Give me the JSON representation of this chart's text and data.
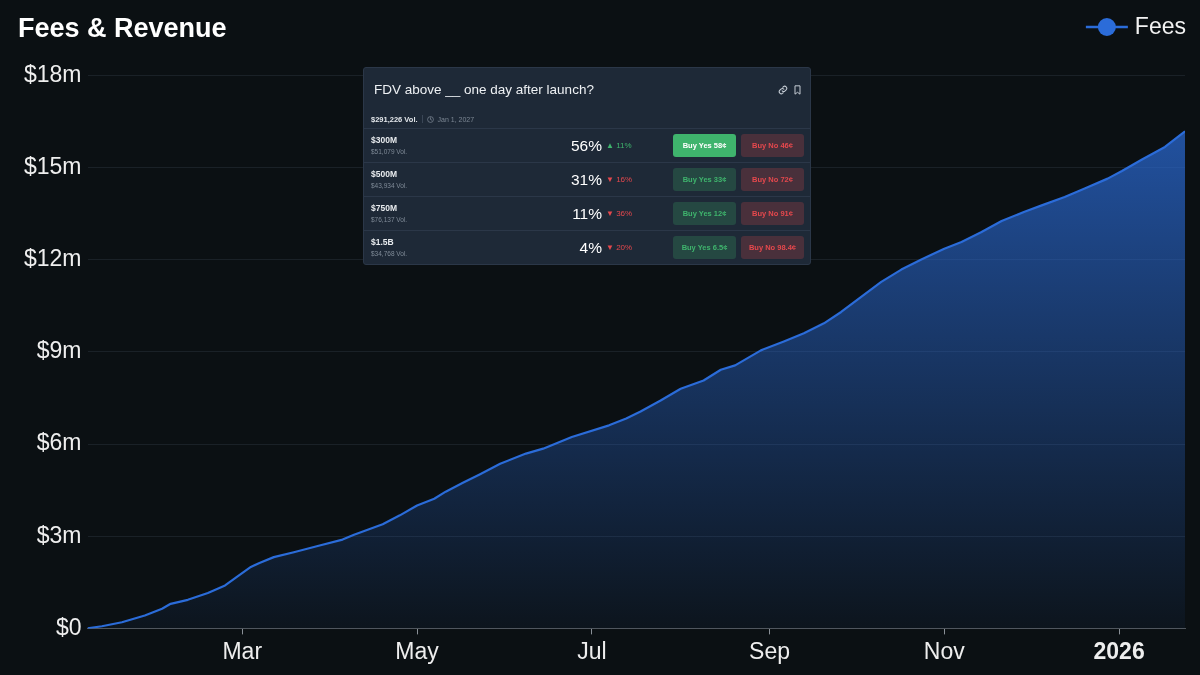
{
  "chart_data": [
    {
      "type": "area",
      "title": "Fees & Revenue",
      "x": [
        "2025-01-06",
        "2025-01-11",
        "2025-01-18",
        "2025-01-26",
        "2025-02-01",
        "2025-02-04",
        "2025-02-10",
        "2025-02-17",
        "2025-02-23",
        "2025-02-27",
        "2025-03-04",
        "2025-03-07",
        "2025-03-12",
        "2025-03-19",
        "2025-03-28",
        "2025-04-05",
        "2025-04-09",
        "2025-04-19",
        "2025-04-25",
        "2025-05-01",
        "2025-05-07",
        "2025-05-11",
        "2025-05-17",
        "2025-05-23",
        "2025-05-30",
        "2025-06-08",
        "2025-06-14",
        "2025-06-24",
        "2025-07-07",
        "2025-07-13",
        "2025-07-18",
        "2025-07-25",
        "2025-08-01",
        "2025-08-09",
        "2025-08-15",
        "2025-08-20",
        "2025-08-29",
        "2025-09-06",
        "2025-09-13",
        "2025-09-20",
        "2025-09-26",
        "2025-10-03",
        "2025-10-10",
        "2025-10-17",
        "2025-10-24",
        "2025-11-01",
        "2025-11-07",
        "2025-11-14",
        "2025-11-21",
        "2025-11-29",
        "2025-12-05",
        "2025-12-13",
        "2025-12-20",
        "2025-12-28",
        "2026-01-02",
        "2026-01-09",
        "2026-01-17",
        "2026-01-24"
      ],
      "series": [
        {
          "name": "Fees",
          "color": "#2b6cd9",
          "values": [
            0,
            0.07,
            0.2,
            0.42,
            0.64,
            0.8,
            0.93,
            1.15,
            1.4,
            1.67,
            2.0,
            2.13,
            2.32,
            2.48,
            2.7,
            2.89,
            3.05,
            3.39,
            3.68,
            4.0,
            4.22,
            4.45,
            4.74,
            5.02,
            5.36,
            5.69,
            5.85,
            6.23,
            6.61,
            6.83,
            7.06,
            7.42,
            7.8,
            8.07,
            8.42,
            8.56,
            9.05,
            9.34,
            9.61,
            9.93,
            10.3,
            10.79,
            11.28,
            11.68,
            12.01,
            12.36,
            12.58,
            12.9,
            13.26,
            13.56,
            13.77,
            14.04,
            14.32,
            14.64,
            14.89,
            15.26,
            15.67,
            16.18
          ]
        }
      ],
      "xlim": [
        "2025-01-06",
        "2026-01-24"
      ],
      "xticks": [
        {
          "value": "2025-03-01",
          "label": "Mar"
        },
        {
          "value": "2025-05-01",
          "label": "May"
        },
        {
          "value": "2025-07-01",
          "label": "Jul"
        },
        {
          "value": "2025-09-01",
          "label": "Sep"
        },
        {
          "value": "2025-11-01",
          "label": "Nov"
        },
        {
          "value": "2026-01-01",
          "label": "2026"
        }
      ],
      "ylim": [
        0,
        18
      ],
      "yticks": [
        {
          "value": 0,
          "label": "$0"
        },
        {
          "value": 3,
          "label": "$3m"
        },
        {
          "value": 6,
          "label": "$6m"
        },
        {
          "value": 9,
          "label": "$9m"
        },
        {
          "value": 12,
          "label": "$12m"
        },
        {
          "value": 15,
          "label": "$15m"
        },
        {
          "value": 18,
          "label": "$18m"
        }
      ],
      "grid": "y",
      "legend": "top right"
    },
    {
      "type": "other",
      "title": "FDV above __ one day after launch?",
      "annotations": [
        "$291,226 Vol.",
        "Jan 1, 2027",
        "$51,079 Vol.",
        "▲ 11%",
        "Buy Yes 58¢",
        "Buy No 46¢",
        "$43,934 Vol.",
        "▼ 16%",
        "Buy Yes 33¢",
        "Buy No 72¢",
        "$76,137 Vol.",
        "▼ 36%",
        "Buy Yes 12¢",
        "Buy No 91¢",
        "$34,768 Vol.",
        "▼ 20%",
        "Buy Yes 6.5¢",
        "Buy No 98.4¢"
      ],
      "categories": [
        "$300M",
        "$500M",
        "$750M",
        "$1.5B"
      ],
      "series": [
        {
          "values": [
            56,
            31,
            11,
            4
          ],
          "value_labels": [
            "56%",
            "31%",
            "11%",
            "4%"
          ]
        }
      ]
    }
  ]
}
